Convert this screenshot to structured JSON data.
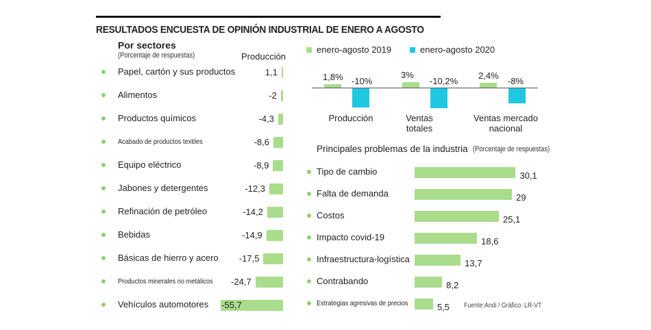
{
  "title": "RESULTADOS ENCUESTA DE OPINIÓN INDUSTRIAL DE ENERO A AGOSTO",
  "source": "Fuente:Andi / Gráfico: LR-VT",
  "colors": {
    "green": "#a9dd8b",
    "cyan": "#1fc8e0",
    "bullet": "#8fcf6f"
  },
  "chart_data": [
    {
      "type": "bar",
      "title": "Por sectores",
      "subtitle": "(Porcentaje de respuestas)",
      "column_label": "Producción",
      "orientation": "horizontal",
      "categories": [
        "Papel, cartón y sus productos",
        "Alimentos",
        "Productos químicos",
        "Acabado de productos textiles",
        "Equipo eléctrico",
        "Jabones y detergentes",
        "Refinación de petróleo",
        "Bebidas",
        "Básicas de hierro y acero",
        "Productos minerales no metálicos",
        "Vehículos automotores"
      ],
      "values": [
        1.1,
        -2,
        -4.3,
        -8.6,
        -8.9,
        -12.3,
        -14.2,
        -14.9,
        -17.5,
        -24.7,
        -55.7
      ],
      "value_labels": [
        "1,1",
        "-2",
        "-4,3",
        "-8,6",
        "-8,9",
        "-12,3",
        "-14,2",
        "-14,9",
        "-17,5",
        "-24,7",
        "-55,7"
      ],
      "small_label_rows": [
        3,
        9
      ]
    },
    {
      "type": "bar",
      "categories": [
        "Producción",
        "Ventas totales",
        "Ventas mercado nacional"
      ],
      "category_lines": [
        [
          "Producción"
        ],
        [
          "Ventas",
          "totales"
        ],
        [
          "Ventas mercado",
          "nacional"
        ]
      ],
      "series": [
        {
          "name": "enero-agosto 2019",
          "values": [
            1.8,
            3,
            2.4
          ],
          "labels": [
            "1,8%",
            "3%",
            "2,4%"
          ],
          "color": "#a9dd8b"
        },
        {
          "name": "enero-agosto 2020",
          "values": [
            -10,
            -10.2,
            -8
          ],
          "labels": [
            "-10%",
            "-10,2%",
            "-8%"
          ],
          "color": "#1fc8e0"
        }
      ],
      "legend": "top"
    },
    {
      "type": "bar",
      "title": "Principales problemas de la industria",
      "subtitle": "(Porcentaje de respuestas)",
      "orientation": "horizontal",
      "categories": [
        "Tipo de cambio",
        "Falta de demanda",
        "Costos",
        "Impacto covid-19",
        "Infraestructura-logística",
        "Contrabando",
        "Estrategias agresivas de precios"
      ],
      "values": [
        30.1,
        29,
        25.1,
        18.6,
        13.7,
        8.2,
        5.5
      ],
      "value_labels": [
        "30,1",
        "29",
        "25,1",
        "18,6",
        "13,7",
        "8,2",
        "5,5"
      ],
      "small_label_rows": [
        6
      ]
    }
  ]
}
